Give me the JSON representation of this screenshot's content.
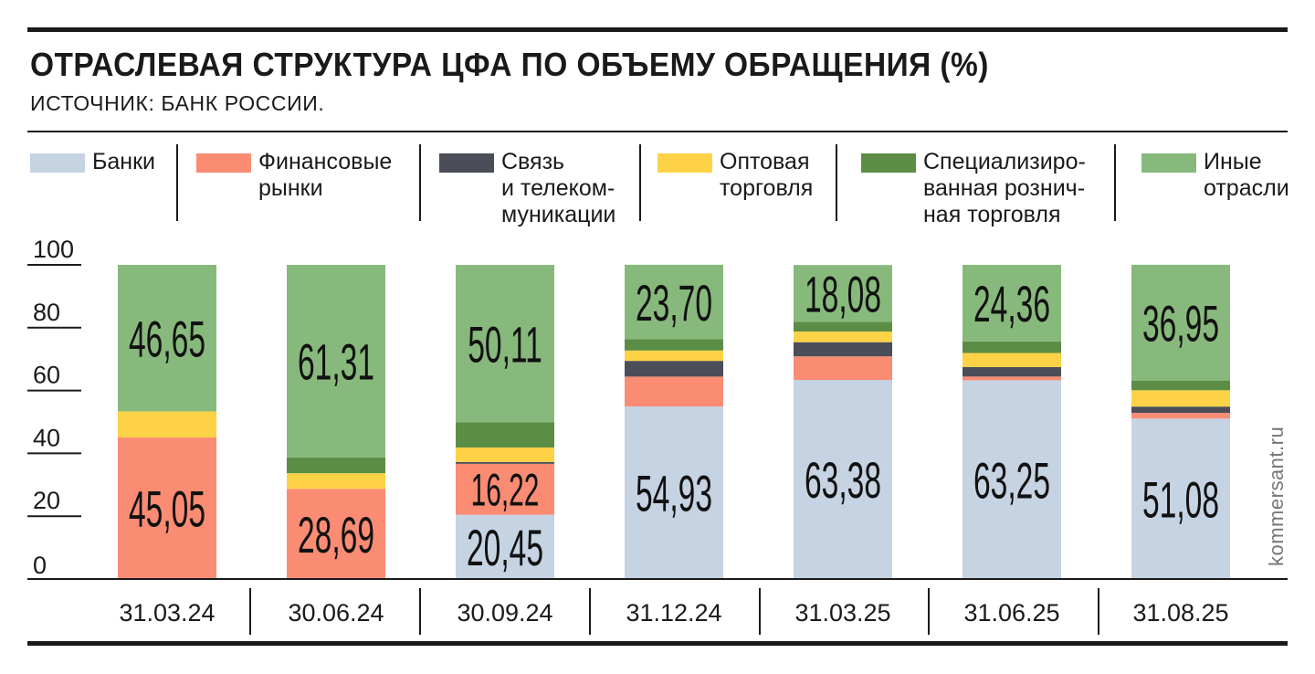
{
  "title": "ОТРАСЛЕВАЯ СТРУКТУРА ЦФА ПО ОБЪЕМУ ОБРАЩЕНИЯ (%)",
  "source": "ИСТОЧНИК: БАНК РОССИИ.",
  "watermark": "kommersant.ru",
  "colors": {
    "banks": "#c5d3e3",
    "finance": "#f98c73",
    "telecom": "#4b4d58",
    "wholesale": "#fdd247",
    "retail": "#5c8d45",
    "other": "#88b97c",
    "ink": "#1a1a1a"
  },
  "legend": [
    {
      "label": "Банки",
      "color": "#c5d3e3"
    },
    {
      "label": "Финансовые\nрынки",
      "color": "#f98c73"
    },
    {
      "label": "Связь\nи телеком-\nмуникации",
      "color": "#4b4d58"
    },
    {
      "label": "Оптовая\nторговля",
      "color": "#fdd247"
    },
    {
      "label": "Специализиро-\nванная рознич-\nная торговля",
      "color": "#5c8d45"
    },
    {
      "label": "Иные\nотрасли",
      "color": "#88b97c"
    }
  ],
  "chart_data": {
    "type": "bar",
    "stacked": true,
    "categories": [
      "31.03.24",
      "30.06.24",
      "30.09.24",
      "31.12.24",
      "31.03.25",
      "31.06.25",
      "31.08.25"
    ],
    "series": [
      {
        "name": "Банки",
        "values": [
          0,
          0,
          20.45,
          54.93,
          63.38,
          63.25,
          51.08
        ],
        "color": "#c5d3e3"
      },
      {
        "name": "Финансовые рынки",
        "values": [
          45.05,
          28.69,
          16.22,
          9.5,
          7.5,
          1.2,
          1.8
        ],
        "color": "#f98c73"
      },
      {
        "name": "Связь и телекоммуникации",
        "values": [
          0,
          0,
          0.6,
          5.0,
          4.5,
          3.0,
          2.0
        ],
        "color": "#4b4d58"
      },
      {
        "name": "Оптовая торговля",
        "values": [
          8.3,
          5.0,
          4.6,
          3.3,
          3.4,
          4.5,
          5.2
        ],
        "color": "#fdd247"
      },
      {
        "name": "Специализированная розничная торговля",
        "values": [
          0,
          5.0,
          8.0,
          3.6,
          3.1,
          3.7,
          3.0
        ],
        "color": "#5c8d45"
      },
      {
        "name": "Иные отрасли",
        "values": [
          46.65,
          61.31,
          50.11,
          23.7,
          18.08,
          24.36,
          36.95
        ],
        "color": "#88b97c"
      }
    ],
    "value_labels": [
      [
        {
          "series": 1,
          "text": "45,05"
        },
        {
          "series": 5,
          "text": "46,65"
        }
      ],
      [
        {
          "series": 1,
          "text": "28,69"
        },
        {
          "series": 5,
          "text": "61,31"
        }
      ],
      [
        {
          "series": 0,
          "text": "20,45"
        },
        {
          "series": 1,
          "text": "16,22"
        },
        {
          "series": 5,
          "text": "50,11"
        }
      ],
      [
        {
          "series": 0,
          "text": "54,93"
        },
        {
          "series": 5,
          "text": "23,70"
        }
      ],
      [
        {
          "series": 0,
          "text": "63,38"
        },
        {
          "series": 5,
          "text": "18,08"
        }
      ],
      [
        {
          "series": 0,
          "text": "63,25"
        },
        {
          "series": 5,
          "text": "24,36"
        }
      ],
      [
        {
          "series": 0,
          "text": "51,08"
        },
        {
          "series": 5,
          "text": "36,95"
        }
      ]
    ],
    "yticks": [
      0,
      20,
      40,
      60,
      80,
      100
    ],
    "ylim": [
      0,
      100
    ],
    "legend_position": "top"
  }
}
